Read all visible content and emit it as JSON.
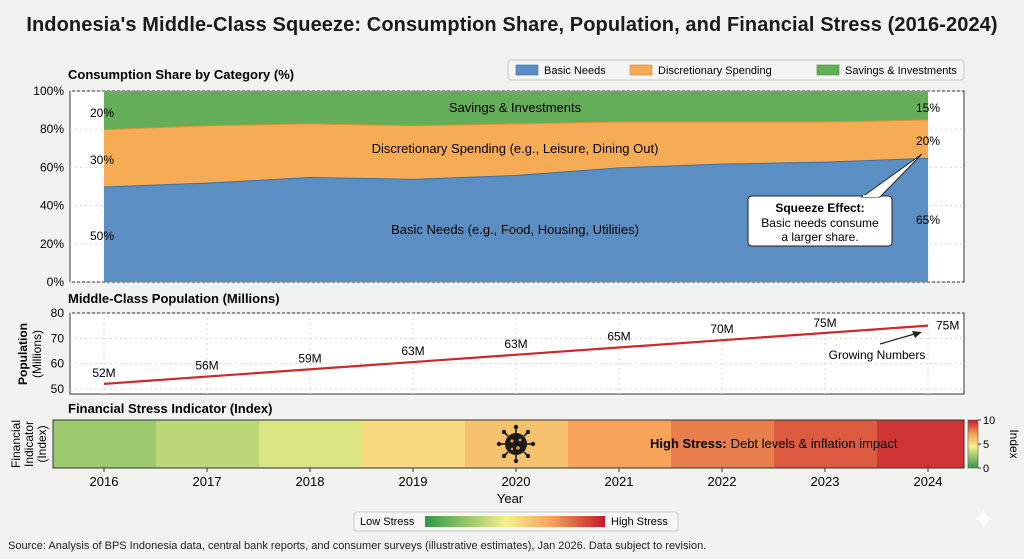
{
  "title": "Indonesia's Middle-Class Squeeze: Consumption Share, Population, and Financial Stress (2016-2024)",
  "source": "Source: Analysis of BPS Indonesia data, central bank reports, and consumer surveys (illustrative estimates), Jan 2026. Data subject to revision.",
  "colors": {
    "basic": "#5b8ec3",
    "discretionary": "#f6ab55",
    "savings": "#64ad59",
    "pop_line": "#cc2a2a"
  },
  "chart_data": [
    {
      "type": "area",
      "title": "Consumption Share by Category (%)",
      "x": [
        2016,
        2017,
        2018,
        2019,
        2020,
        2021,
        2022,
        2023,
        2024
      ],
      "ylim": [
        0,
        100
      ],
      "yticks": [
        "0%",
        "20%",
        "40%",
        "60%",
        "80%",
        "100%"
      ],
      "series": [
        {
          "name": "Basic Needs",
          "area_label": "Basic Needs (e.g., Food, Housing, Utilities)",
          "values": [
            50,
            52,
            55,
            54,
            56,
            60,
            62,
            63,
            65
          ]
        },
        {
          "name": "Discretionary Spending",
          "area_label": "Discretionary Spending (e.g., Leisure, Dining Out)",
          "values": [
            30,
            30,
            28,
            28,
            27,
            24,
            22,
            21,
            20
          ]
        },
        {
          "name": "Savings & Investments",
          "area_label": "Savings & Investments",
          "values": [
            20,
            18,
            17,
            18,
            17,
            16,
            16,
            16,
            15
          ]
        }
      ],
      "legend": [
        "Basic Needs",
        "Discretionary Spending",
        "Savings & Investments"
      ],
      "start_labels": {
        "basic": "50%",
        "discretionary": "30%",
        "savings": "20%"
      },
      "end_labels": {
        "basic": "65%",
        "discretionary": "20%",
        "savings": "15%"
      },
      "annotation": {
        "title": "Squeeze Effect:",
        "line1": "Basic needs consume",
        "line2": "a larger share."
      }
    },
    {
      "type": "line",
      "title": "Middle-Class Population (Millions)",
      "ylabel_line1": "Population",
      "ylabel_line2": "(Millions)",
      "x": [
        2016,
        2017,
        2018,
        2019,
        2020,
        2021,
        2022,
        2023,
        2024
      ],
      "values": [
        52,
        56,
        59,
        63,
        63,
        65,
        70,
        75,
        75
      ],
      "point_labels": [
        "52M",
        "56M",
        "59M",
        "63M",
        "63M",
        "65M",
        "70M",
        "75M",
        "75M"
      ],
      "ylim": [
        48,
        80
      ],
      "yticks": [
        50,
        60,
        70,
        80
      ],
      "annotation": "Growing Numbers"
    },
    {
      "type": "heatmap",
      "title": "Financial Stress Indicator (Index)",
      "ylabel_line1": "Financial",
      "ylabel_line2": "Indicator",
      "ylabel_line3": "(Index)",
      "x": [
        2016,
        2017,
        2018,
        2019,
        2020,
        2021,
        2022,
        2023,
        2024
      ],
      "values": [
        2.5,
        3.2,
        3.9,
        5.2,
        6.0,
        7.0,
        7.8,
        8.6,
        9.4
      ],
      "xlabel": "Year",
      "annotation_bold": "High Stress:",
      "annotation_rest": "Debt levels & inflation impact",
      "colorbar_label": "Index",
      "colorbar_ticks": [
        "0",
        "5",
        "10"
      ],
      "legend_low": "Low Stress",
      "legend_high": "High Stress"
    }
  ]
}
